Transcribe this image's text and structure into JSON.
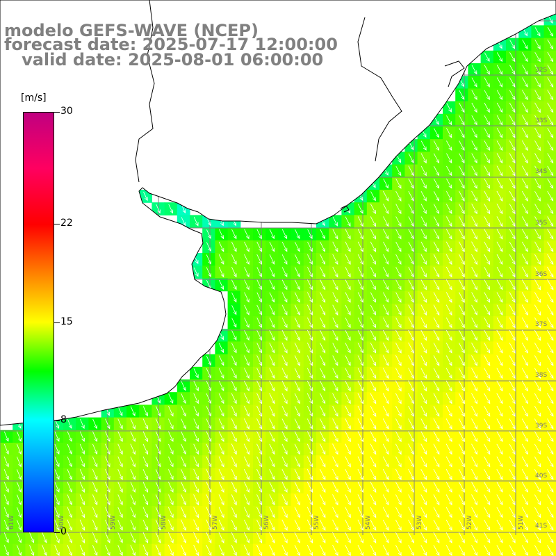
{
  "header": {
    "line1": "modelo GEFS-WAVE (NCEP)",
    "line2": "forecast date: 2025-07-17 12:00:00",
    "line3": "   valid date: 2025-08-01 06:00:00"
  },
  "colorbar": {
    "unit": "[m/s]",
    "labels": [
      "30",
      "22",
      "15",
      "8",
      "0"
    ],
    "ticks": [
      30,
      22,
      15,
      8,
      0
    ],
    "range": [
      0,
      30
    ],
    "stops": [
      {
        "v": 0,
        "color": "#0000ff"
      },
      {
        "v": 4,
        "color": "#0080ff"
      },
      {
        "v": 8,
        "color": "#00ffff"
      },
      {
        "v": 11.5,
        "color": "#00ff00"
      },
      {
        "v": 15,
        "color": "#ffff00"
      },
      {
        "v": 18.5,
        "color": "#ff8000"
      },
      {
        "v": 22,
        "color": "#ff0000"
      },
      {
        "v": 26,
        "color": "#ff0060"
      },
      {
        "v": 30,
        "color": "#c00080"
      }
    ]
  },
  "map": {
    "lat_labels": [
      "32S",
      "33S",
      "34S",
      "35S",
      "36S",
      "37S",
      "38S",
      "39S",
      "40S",
      "41S"
    ],
    "lon_labels": [
      "61W",
      "60W",
      "59W",
      "58W",
      "57W",
      "56W",
      "55W",
      "54W",
      "53W",
      "52W",
      "51W"
    ],
    "grid_color": "#808080",
    "coast_color": "#000000",
    "land_color": "#ffffff",
    "wind_direction": "northwest-to-southeast",
    "wind_speed_range": [
      7,
      15
    ],
    "arrow_color": "#ffffff"
  }
}
